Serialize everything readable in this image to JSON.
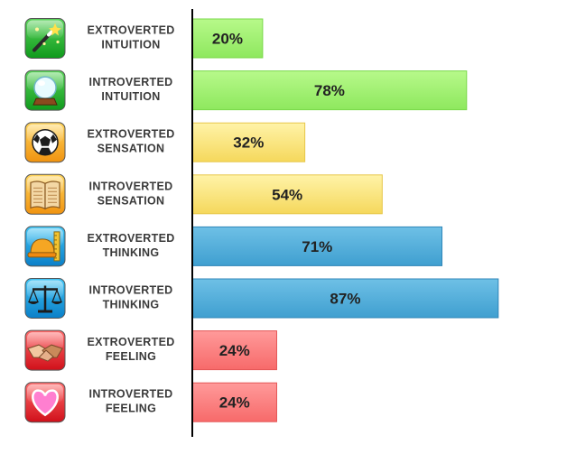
{
  "chart_data": {
    "type": "bar",
    "orientation": "horizontal",
    "categories": [
      "EXTROVERTED INTUITION",
      "INTROVERTED INTUITION",
      "EXTROVERTED SENSATION",
      "INTROVERTED SENSATION",
      "EXTROVERTED THINKING",
      "INTROVERTED THINKING",
      "EXTROVERTED FEELING",
      "INTROVERTED FEELING"
    ],
    "values": [
      20,
      78,
      32,
      54,
      71,
      87,
      24,
      24
    ],
    "value_labels": [
      "20%",
      "78%",
      "32%",
      "54%",
      "71%",
      "87%",
      "24%",
      "24%"
    ],
    "label_lines": [
      [
        "EXTROVERTED",
        "INTUITION"
      ],
      [
        "INTROVERTED",
        "INTUITION"
      ],
      [
        "EXTROVERTED",
        "SENSATION"
      ],
      [
        "INTROVERTED",
        "SENSATION"
      ],
      [
        "EXTROVERTED",
        "THINKING"
      ],
      [
        "INTROVERTED",
        "THINKING"
      ],
      [
        "EXTROVERTED",
        "FEELING"
      ],
      [
        "INTROVERTED",
        "FEELING"
      ]
    ],
    "icons": [
      "magic-wand-icon",
      "crystal-ball-icon",
      "soccer-ball-icon",
      "open-book-icon",
      "hard-hat-ruler-icon",
      "balance-scale-icon",
      "handshake-icon",
      "heart-icon"
    ],
    "groups": [
      "intuition",
      "intuition",
      "sensation",
      "sensation",
      "thinking",
      "thinking",
      "feeling",
      "feeling"
    ],
    "colors": {
      "intuition": {
        "bar_top": "#b7f98a",
        "bar_bottom": "#8ee85e",
        "border": "#79d84a",
        "icon_top": "#5ad35a",
        "icon_bottom": "#0f9a1c"
      },
      "sensation": {
        "bar_top": "#fff3a8",
        "bar_bottom": "#f5d85c",
        "border": "#e6c64a",
        "icon_top": "#ffd45a",
        "icon_bottom": "#f09310"
      },
      "thinking": {
        "bar_top": "#6ec0e6",
        "bar_bottom": "#3f9fd0",
        "border": "#2f86b8",
        "icon_top": "#3fc4f5",
        "icon_bottom": "#0a7fc8"
      },
      "feeling": {
        "bar_top": "#ff9a9a",
        "bar_bottom": "#f76a6a",
        "border": "#e45656",
        "icon_top": "#ff6a6a",
        "icon_bottom": "#d0101a"
      },
      "axis_line": "#000000"
    },
    "xlim": [
      0,
      100
    ],
    "grid": false,
    "legend": "none",
    "title": "",
    "xlabel": "",
    "ylabel": ""
  }
}
